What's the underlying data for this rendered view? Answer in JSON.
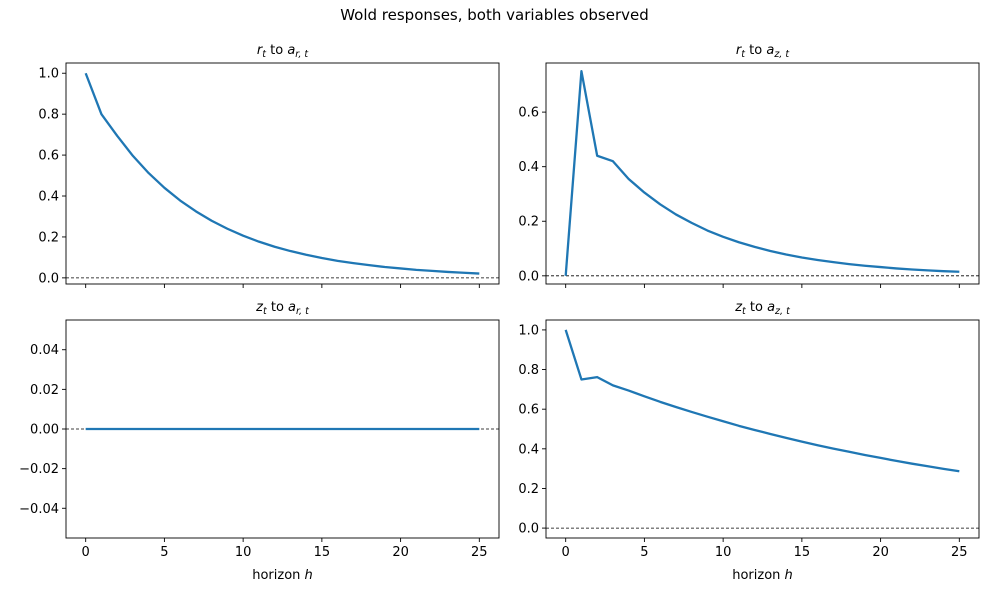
{
  "figure": {
    "suptitle": "Wold responses, both variables observed"
  },
  "chart_data": [
    {
      "type": "line",
      "title_main": "r",
      "title_sub": "t",
      "title_mid": " to ",
      "title_main2": "a",
      "title_sub2": "r, t",
      "xlabel": "",
      "xlabel_main": "",
      "xlabel_italic": "",
      "xlim": [
        -1.25,
        26.25
      ],
      "ylim": [
        -0.03,
        1.05
      ],
      "xticks": [
        0,
        5,
        10,
        15,
        20,
        25
      ],
      "show_xticklabels": false,
      "yticks": [
        0.0,
        0.2,
        0.4,
        0.6,
        0.8,
        1.0
      ],
      "yticklabels": [
        "0.0",
        "0.2",
        "0.4",
        "0.6",
        "0.8",
        "1.0"
      ],
      "line_color": "#1f77b4",
      "zero_line": true,
      "x": [
        0,
        1,
        2,
        3,
        4,
        5,
        6,
        7,
        8,
        9,
        10,
        11,
        12,
        13,
        14,
        15,
        16,
        17,
        18,
        19,
        20,
        21,
        22,
        23,
        24,
        25
      ],
      "series": [
        {
          "values": [
            1.0,
            0.8,
            0.694,
            0.596,
            0.512,
            0.44,
            0.378,
            0.325,
            0.279,
            0.24,
            0.206,
            0.177,
            0.152,
            0.131,
            0.113,
            0.097,
            0.083,
            0.072,
            0.062,
            0.053,
            0.046,
            0.039,
            0.034,
            0.029,
            0.025,
            0.021
          ]
        }
      ]
    },
    {
      "type": "line",
      "title_main": "r",
      "title_sub": "t",
      "title_mid": " to ",
      "title_main2": "a",
      "title_sub2": "z, t",
      "xlabel": "",
      "xlabel_main": "",
      "xlabel_italic": "",
      "xlim": [
        -1.25,
        26.25
      ],
      "ylim": [
        -0.03,
        0.78
      ],
      "xticks": [
        0,
        5,
        10,
        15,
        20,
        25
      ],
      "show_xticklabels": false,
      "yticks": [
        0.0,
        0.2,
        0.4,
        0.6
      ],
      "yticklabels": [
        "0.0",
        "0.2",
        "0.4",
        "0.6"
      ],
      "line_color": "#1f77b4",
      "zero_line": true,
      "x": [
        0,
        1,
        2,
        3,
        4,
        5,
        6,
        7,
        8,
        9,
        10,
        11,
        12,
        13,
        14,
        15,
        16,
        17,
        18,
        19,
        20,
        21,
        22,
        23,
        24,
        25
      ],
      "series": [
        {
          "values": [
            0.0,
            0.75,
            0.44,
            0.42,
            0.355,
            0.305,
            0.262,
            0.225,
            0.194,
            0.166,
            0.143,
            0.123,
            0.106,
            0.091,
            0.078,
            0.067,
            0.058,
            0.05,
            0.043,
            0.037,
            0.032,
            0.027,
            0.023,
            0.02,
            0.017,
            0.015
          ]
        }
      ]
    },
    {
      "type": "line",
      "title_main": "z",
      "title_sub": "t",
      "title_mid": " to ",
      "title_main2": "a",
      "title_sub2": "r, t",
      "xlabel": "horizon h",
      "xlabel_main": "horizon ",
      "xlabel_italic": "h",
      "xlim": [
        -1.25,
        26.25
      ],
      "ylim": [
        -0.055,
        0.055
      ],
      "xticks": [
        0,
        5,
        10,
        15,
        20,
        25
      ],
      "show_xticklabels": true,
      "yticks": [
        -0.04,
        -0.02,
        0.0,
        0.02,
        0.04
      ],
      "yticklabels": [
        "−0.04",
        "−0.02",
        "0.00",
        "0.02",
        "0.04"
      ],
      "line_color": "#1f77b4",
      "zero_line": true,
      "x": [
        0,
        1,
        2,
        3,
        4,
        5,
        6,
        7,
        8,
        9,
        10,
        11,
        12,
        13,
        14,
        15,
        16,
        17,
        18,
        19,
        20,
        21,
        22,
        23,
        24,
        25
      ],
      "series": [
        {
          "values": [
            0,
            0,
            0,
            0,
            0,
            0,
            0,
            0,
            0,
            0,
            0,
            0,
            0,
            0,
            0,
            0,
            0,
            0,
            0,
            0,
            0,
            0,
            0,
            0,
            0,
            0
          ]
        }
      ]
    },
    {
      "type": "line",
      "title_main": "z",
      "title_sub": "t",
      "title_mid": " to ",
      "title_main2": "a",
      "title_sub2": "z, t",
      "xlabel": "horizon h",
      "xlabel_main": "horizon ",
      "xlabel_italic": "h",
      "xlim": [
        -1.25,
        26.25
      ],
      "ylim": [
        -0.05,
        1.05
      ],
      "xticks": [
        0,
        5,
        10,
        15,
        20,
        25
      ],
      "show_xticklabels": true,
      "yticks": [
        0.0,
        0.2,
        0.4,
        0.6,
        0.8,
        1.0
      ],
      "yticklabels": [
        "0.0",
        "0.2",
        "0.4",
        "0.6",
        "0.8",
        "1.0"
      ],
      "line_color": "#1f77b4",
      "zero_line": true,
      "x": [
        0,
        1,
        2,
        3,
        4,
        5,
        6,
        7,
        8,
        9,
        10,
        11,
        12,
        13,
        14,
        15,
        16,
        17,
        18,
        19,
        20,
        21,
        22,
        23,
        24,
        25
      ],
      "series": [
        {
          "values": [
            1.0,
            0.75,
            0.762,
            0.72,
            0.694,
            0.665,
            0.637,
            0.611,
            0.586,
            0.562,
            0.539,
            0.516,
            0.495,
            0.475,
            0.455,
            0.436,
            0.418,
            0.401,
            0.385,
            0.369,
            0.354,
            0.339,
            0.325,
            0.312,
            0.299,
            0.287
          ]
        }
      ]
    }
  ]
}
